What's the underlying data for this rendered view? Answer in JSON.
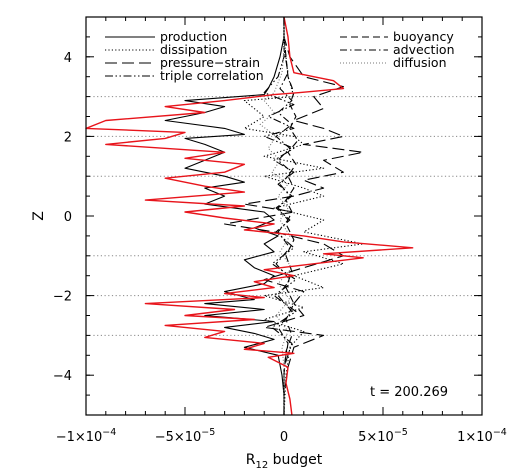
{
  "chart_data": {
    "type": "line",
    "xlabel_main": "R",
    "xlabel_sub": "12",
    "xlabel_rest": " budget",
    "ylabel": "Z",
    "xlim": [
      -0.0001,
      0.0001
    ],
    "ylim": [
      -5,
      5
    ],
    "x_ticks": [
      -0.0001,
      -5e-05,
      0,
      5e-05,
      0.0001
    ],
    "x_tick_labels": [
      {
        "mant": "−1×10",
        "exp": "−4"
      },
      {
        "mant": "−5×10",
        "exp": "−5"
      },
      {
        "mant": "0",
        "exp": ""
      },
      {
        "mant": "5×10",
        "exp": "−5"
      },
      {
        "mant": "1×10",
        "exp": "−4"
      }
    ],
    "y_ticks": [
      -4,
      -2,
      0,
      2,
      4
    ],
    "y_tick_labels": [
      "−4",
      "−2",
      "0",
      "2",
      "4"
    ],
    "grid_y": [
      -3,
      -2,
      -1,
      1,
      2,
      3
    ],
    "annotation": "t = 200.269",
    "legend_left": [
      {
        "name": "production",
        "dash": "solid"
      },
      {
        "name": "dissipation",
        "dash": "dotted"
      },
      {
        "name": "pressure−strain",
        "dash": "longdash"
      },
      {
        "name": "triple correlation",
        "dash": "dashdotdot"
      }
    ],
    "legend_right": [
      {
        "name": "buoyancy",
        "dash": "dashed"
      },
      {
        "name": "advection",
        "dash": "dashdot"
      },
      {
        "name": "diffusion",
        "dash": "dotted-light"
      }
    ],
    "series": [
      {
        "name": "production",
        "color": "#000000",
        "dash": "solid",
        "points": [
          [
            0,
            5
          ],
          [
            0,
            4.5
          ],
          [
            -2e-06,
            4
          ],
          [
            -5e-06,
            3.5
          ],
          [
            -8e-06,
            3.2
          ],
          [
            -1e-05,
            3.05
          ],
          [
            -5e-05,
            2.9
          ],
          [
            -3e-05,
            2.75
          ],
          [
            -4e-05,
            2.6
          ],
          [
            -6e-05,
            2.4
          ],
          [
            -3e-05,
            2.2
          ],
          [
            -2e-05,
            2.05
          ],
          [
            -5e-05,
            1.95
          ],
          [
            -4e-05,
            1.8
          ],
          [
            -3e-05,
            1.6
          ],
          [
            -4e-05,
            1.4
          ],
          [
            -5e-05,
            1.2
          ],
          [
            -3e-05,
            1.0
          ],
          [
            -2e-05,
            0.85
          ],
          [
            -4e-05,
            0.7
          ],
          [
            -3e-05,
            0.5
          ],
          [
            -4e-05,
            0.3
          ],
          [
            -1e-05,
            0.1
          ],
          [
            -5e-06,
            -0.1
          ],
          [
            -1.5e-05,
            -0.3
          ],
          [
            -3e-06,
            -0.5
          ],
          [
            -1e-05,
            -0.7
          ],
          [
            -5e-06,
            -0.9
          ],
          [
            -2e-05,
            -1.1
          ],
          [
            -1.5e-05,
            -1.3
          ],
          [
            -5e-06,
            -1.5
          ],
          [
            -1e-05,
            -1.7
          ],
          [
            -3e-05,
            -1.9
          ],
          [
            -1.5e-05,
            -2.1
          ],
          [
            -4e-05,
            -2.2
          ],
          [
            -1e-05,
            -2.35
          ],
          [
            -4e-05,
            -2.5
          ],
          [
            -5e-06,
            -2.65
          ],
          [
            -3e-05,
            -2.8
          ],
          [
            -1.5e-05,
            -2.95
          ],
          [
            -5e-06,
            -3.1
          ],
          [
            -2e-05,
            -3.3
          ],
          [
            -3e-06,
            -3.5
          ],
          [
            -1e-06,
            -4
          ],
          [
            0,
            -4.5
          ],
          [
            0,
            -5
          ]
        ]
      },
      {
        "name": "dissipation",
        "color": "#000000",
        "dash": "dotted",
        "points": [
          [
            0,
            5
          ],
          [
            0,
            4.5
          ],
          [
            1e-06,
            4
          ],
          [
            2e-06,
            3.5
          ],
          [
            5e-06,
            3.0
          ],
          [
            -2e-05,
            2.9
          ],
          [
            -1e-05,
            2.5
          ],
          [
            -2e-05,
            2.2
          ],
          [
            5e-06,
            2.0
          ],
          [
            1e-05,
            1.8
          ],
          [
            -1e-05,
            1.5
          ],
          [
            2e-05,
            1.2
          ],
          [
            -1e-05,
            1.0
          ],
          [
            1e-05,
            0.7
          ],
          [
            2e-05,
            0.5
          ],
          [
            -5e-06,
            0.2
          ],
          [
            2e-05,
            -0.1
          ],
          [
            1e-05,
            -0.4
          ],
          [
            4e-05,
            -0.7
          ],
          [
            1e-05,
            -0.9
          ],
          [
            3e-05,
            -1.2
          ],
          [
            5e-06,
            -1.5
          ],
          [
            2e-05,
            -1.8
          ],
          [
            -1e-05,
            -2.0
          ],
          [
            1e-05,
            -2.3
          ],
          [
            -1e-05,
            -2.6
          ],
          [
            1e-05,
            -2.9
          ],
          [
            3e-06,
            -3.3
          ],
          [
            1e-06,
            -4
          ],
          [
            0,
            -5
          ]
        ]
      },
      {
        "name": "pressure−strain",
        "color": "#000000",
        "dash": "longdash",
        "points": [
          [
            0,
            5
          ],
          [
            0,
            4.5
          ],
          [
            3e-06,
            4
          ],
          [
            1e-05,
            3.5
          ],
          [
            3e-05,
            3.25
          ],
          [
            1.5e-05,
            3.0
          ],
          [
            2e-05,
            2.7
          ],
          [
            5e-06,
            2.4
          ],
          [
            2e-05,
            2.2
          ],
          [
            3e-05,
            2.0
          ],
          [
            1e-05,
            1.8
          ],
          [
            4e-05,
            1.6
          ],
          [
            2e-05,
            1.4
          ],
          [
            3e-05,
            1.1
          ],
          [
            1e-05,
            0.9
          ],
          [
            2e-05,
            0.7
          ],
          [
            5e-06,
            0.5
          ],
          [
            -2e-05,
            0.3
          ],
          [
            5e-06,
            0.1
          ],
          [
            -3e-05,
            -0.2
          ],
          [
            -5e-06,
            -0.4
          ],
          [
            2e-05,
            -0.7
          ],
          [
            3e-05,
            -1.0
          ],
          [
            1e-05,
            -1.3
          ],
          [
            -1e-05,
            -1.6
          ],
          [
            1e-05,
            -1.9
          ],
          [
            5e-06,
            -2.2
          ],
          [
            1e-05,
            -2.5
          ],
          [
            -1e-05,
            -2.8
          ],
          [
            2e-05,
            -3.0
          ],
          [
            5e-06,
            -3.3
          ],
          [
            2e-06,
            -3.8
          ],
          [
            0,
            -4.5
          ],
          [
            0,
            -5
          ]
        ]
      },
      {
        "name": "triple correlation",
        "color": "#000000",
        "dash": "dashdotdot",
        "points": [
          [
            0,
            5
          ],
          [
            0,
            4
          ],
          [
            -3e-06,
            3.5
          ],
          [
            -1e-05,
            3.1
          ],
          [
            5e-06,
            2.8
          ],
          [
            -8e-06,
            2.5
          ],
          [
            5e-06,
            2.2
          ],
          [
            -1e-05,
            2.0
          ],
          [
            5e-06,
            1.7
          ],
          [
            -5e-06,
            1.4
          ],
          [
            5e-06,
            1.1
          ],
          [
            -3e-06,
            0.8
          ],
          [
            4e-06,
            0.5
          ],
          [
            -4e-06,
            0.2
          ],
          [
            3e-06,
            -0.1
          ],
          [
            -4e-06,
            -0.4
          ],
          [
            5e-06,
            -0.8
          ],
          [
            -6e-06,
            -1.2
          ],
          [
            6e-06,
            -1.6
          ],
          [
            -5e-06,
            -2.0
          ],
          [
            6e-06,
            -2.4
          ],
          [
            -6e-06,
            -2.8
          ],
          [
            4e-06,
            -3.2
          ],
          [
            0,
            -3.8
          ],
          [
            0,
            -5
          ]
        ]
      },
      {
        "name": "buoyancy",
        "color": "#000000",
        "dash": "dashed",
        "points": [
          [
            0,
            5
          ],
          [
            0,
            4.5
          ],
          [
            1e-06,
            4
          ],
          [
            2e-06,
            3.5
          ],
          [
            5e-06,
            3.1
          ],
          [
            3e-06,
            2.8
          ],
          [
            6e-06,
            2.5
          ],
          [
            3e-06,
            2.2
          ],
          [
            7e-06,
            1.9
          ],
          [
            2e-06,
            1.6
          ],
          [
            6e-06,
            1.3
          ],
          [
            2e-06,
            1.0
          ],
          [
            5e-06,
            0.7
          ],
          [
            1e-06,
            0.4
          ],
          [
            4e-06,
            0.1
          ],
          [
            1e-06,
            -0.2
          ],
          [
            5e-06,
            -0.6
          ],
          [
            1e-06,
            -1.0
          ],
          [
            4e-06,
            -1.4
          ],
          [
            1e-06,
            -1.8
          ],
          [
            5e-06,
            -2.2
          ],
          [
            1e-06,
            -2.6
          ],
          [
            4e-06,
            -3.0
          ],
          [
            1e-06,
            -3.4
          ],
          [
            0,
            -4
          ],
          [
            0,
            -5
          ]
        ]
      },
      {
        "name": "advection",
        "color": "#000000",
        "dash": "dashdot",
        "points": [
          [
            0,
            5
          ],
          [
            0,
            4.2
          ],
          [
            2e-06,
            3.6
          ],
          [
            -2e-06,
            3.2
          ],
          [
            4e-06,
            2.9
          ],
          [
            -3e-06,
            2.6
          ],
          [
            4e-06,
            2.3
          ],
          [
            -4e-06,
            2.0
          ],
          [
            3e-06,
            1.7
          ],
          [
            -3e-06,
            1.4
          ],
          [
            4e-06,
            1.1
          ],
          [
            -2e-06,
            0.8
          ],
          [
            3e-06,
            0.5
          ],
          [
            -3e-06,
            0.2
          ],
          [
            2e-06,
            -0.1
          ],
          [
            -3e-06,
            -0.4
          ],
          [
            3e-06,
            -0.8
          ],
          [
            -4e-06,
            -1.2
          ],
          [
            3e-06,
            -1.6
          ],
          [
            -3e-06,
            -2.0
          ],
          [
            4e-06,
            -2.4
          ],
          [
            -3e-06,
            -2.8
          ],
          [
            2e-06,
            -3.2
          ],
          [
            0,
            -3.8
          ],
          [
            0,
            -5
          ]
        ]
      },
      {
        "name": "diffusion",
        "color": "#777777",
        "dash": "dotted-light",
        "points": [
          [
            0,
            5
          ],
          [
            0,
            4.2
          ],
          [
            -1e-06,
            3.6
          ],
          [
            -5e-06,
            3.1
          ],
          [
            -1e-05,
            2.9
          ],
          [
            -5e-06,
            2.6
          ],
          [
            -1.2e-05,
            2.3
          ],
          [
            -4e-06,
            2.0
          ],
          [
            -8e-06,
            1.7
          ],
          [
            -2e-06,
            1.4
          ],
          [
            -6e-06,
            1.1
          ],
          [
            2e-06,
            0.8
          ],
          [
            -3e-06,
            0.5
          ],
          [
            2e-06,
            0.2
          ],
          [
            -2e-06,
            -0.1
          ],
          [
            3e-06,
            -0.5
          ],
          [
            -2e-06,
            -0.9
          ],
          [
            4e-06,
            -1.3
          ],
          [
            -3e-06,
            -1.7
          ],
          [
            3e-06,
            -2.1
          ],
          [
            -4e-06,
            -2.5
          ],
          [
            2e-06,
            -2.9
          ],
          [
            -1e-06,
            -3.3
          ],
          [
            0,
            -3.8
          ],
          [
            0,
            -5
          ]
        ]
      },
      {
        "name": "",
        "color": "#e8141b",
        "dash": "solid",
        "points": [
          [
            0,
            5
          ],
          [
            2e-06,
            4.5
          ],
          [
            3e-06,
            4.0
          ],
          [
            5e-06,
            3.6
          ],
          [
            2.5e-05,
            3.4
          ],
          [
            3e-05,
            3.2
          ],
          [
            8e-06,
            3.1
          ],
          [
            -5e-06,
            3.05
          ],
          [
            -3e-05,
            2.9
          ],
          [
            -6e-05,
            2.75
          ],
          [
            -4e-05,
            2.6
          ],
          [
            -9e-05,
            2.4
          ],
          [
            -0.0001,
            2.2
          ],
          [
            -5e-05,
            2.1
          ],
          [
            -6e-05,
            1.95
          ],
          [
            -9e-05,
            1.8
          ],
          [
            -3e-05,
            1.6
          ],
          [
            -5e-05,
            1.45
          ],
          [
            -2e-05,
            1.3
          ],
          [
            -3e-05,
            1.1
          ],
          [
            -6e-05,
            0.95
          ],
          [
            -4e-05,
            0.75
          ],
          [
            -2e-05,
            0.6
          ],
          [
            -7e-05,
            0.4
          ],
          [
            -2e-05,
            0.25
          ],
          [
            -5e-05,
            0.1
          ],
          [
            -3e-05,
            -0.05
          ],
          [
            -5e-06,
            -0.2
          ],
          [
            -2e-05,
            -0.35
          ],
          [
            1e-05,
            -0.5
          ],
          [
            3e-05,
            -0.65
          ],
          [
            6.5e-05,
            -0.8
          ],
          [
            2e-05,
            -0.95
          ],
          [
            4e-05,
            -1.05
          ],
          [
            1.5e-05,
            -1.2
          ],
          [
            -1e-05,
            -1.35
          ],
          [
            5e-06,
            -1.5
          ],
          [
            -1.5e-05,
            -1.65
          ],
          [
            -5e-06,
            -1.8
          ],
          [
            -3e-05,
            -1.95
          ],
          [
            -1e-05,
            -2.05
          ],
          [
            -7e-05,
            -2.2
          ],
          [
            -2.5e-05,
            -2.35
          ],
          [
            -5e-05,
            -2.5
          ],
          [
            -1.5e-05,
            -2.6
          ],
          [
            -6e-05,
            -2.75
          ],
          [
            -3e-05,
            -2.9
          ],
          [
            -4e-05,
            -3.05
          ],
          [
            -1e-05,
            -3.2
          ],
          [
            -2e-05,
            -3.35
          ],
          [
            5e-06,
            -3.45
          ],
          [
            -8e-06,
            -3.55
          ],
          [
            2e-06,
            -3.8
          ],
          [
            1e-06,
            -4.2
          ],
          [
            3e-06,
            -4.6
          ],
          [
            4e-06,
            -5
          ]
        ]
      }
    ]
  }
}
